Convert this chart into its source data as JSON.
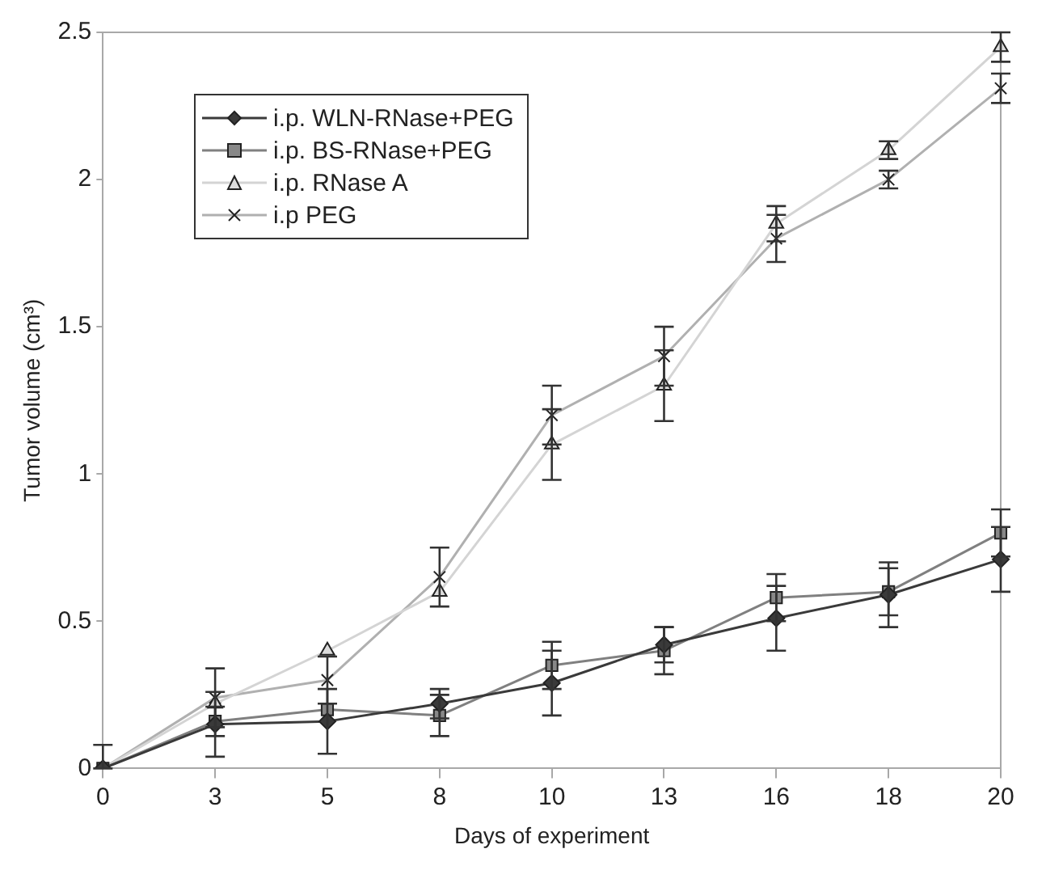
{
  "chart_data": {
    "type": "line",
    "xlabel": "Days of experiment",
    "ylabel": "Tumor volume (cm³)",
    "categories": [
      "0",
      "3",
      "5",
      "8",
      "10",
      "13",
      "16",
      "18",
      "20"
    ],
    "ylim": [
      0,
      2.5
    ],
    "yticks": [
      0,
      0.5,
      1,
      1.5,
      2,
      2.5
    ],
    "grid": false,
    "legend": "top left",
    "series": [
      {
        "name": "i.p. WLN-RNase+PEG",
        "color": "#3a3a3a",
        "marker": "diamond",
        "values": [
          0,
          0.15,
          0.16,
          0.22,
          0.29,
          0.42,
          0.51,
          0.59,
          0.71
        ],
        "errors": [
          [
            0,
            0.08
          ],
          0.11,
          0.11,
          0.05,
          0.11,
          0.06,
          0.11,
          0.11,
          0.11
        ]
      },
      {
        "name": "i.p. BS-RNase+PEG",
        "color": "#808080",
        "marker": "square",
        "values": [
          0,
          0.16,
          0.2,
          0.18,
          0.35,
          0.4,
          0.58,
          0.6,
          0.8
        ],
        "errors": [
          null,
          0.05,
          null,
          0.07,
          0.08,
          0.08,
          0.08,
          0.08,
          0.08
        ]
      },
      {
        "name": "i.p. RNase A",
        "color": "#d4d4d4",
        "marker": "triangle",
        "values": [
          0,
          0.22,
          0.4,
          0.6,
          1.1,
          1.3,
          1.85,
          2.1,
          2.45
        ],
        "errors": [
          null,
          null,
          null,
          null,
          0.12,
          0.12,
          0.06,
          0.03,
          0.05
        ]
      },
      {
        "name": "i.p PEG",
        "color": "#b0b0b0",
        "marker": "cross",
        "values": [
          0,
          0.24,
          0.3,
          0.65,
          1.2,
          1.4,
          1.8,
          2.0,
          2.31
        ],
        "errors": [
          null,
          0.1,
          0.08,
          0.1,
          0.1,
          0.1,
          0.08,
          0.03,
          0.05
        ]
      }
    ]
  }
}
